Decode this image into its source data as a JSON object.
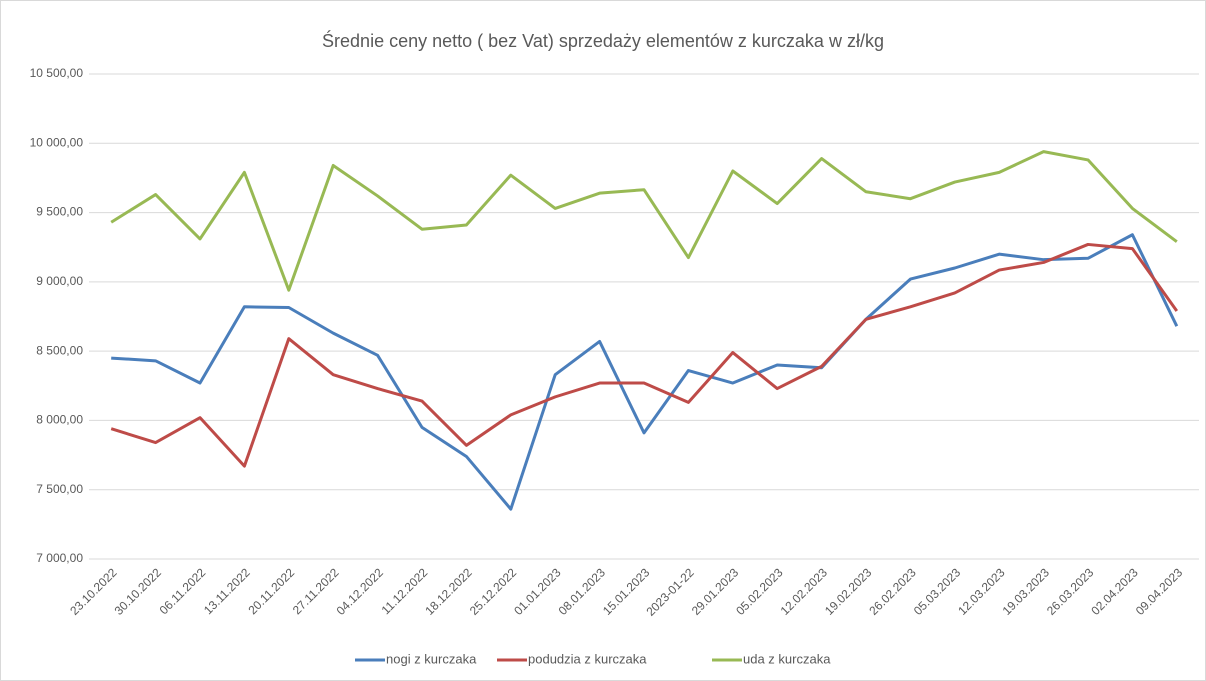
{
  "chart_data": {
    "type": "line",
    "title": "Średnie ceny netto ( bez Vat) sprzedaży elementów z kurczaka w zł/kg",
    "categories": [
      "23.10.2022",
      "30.10.2022",
      "06.11.2022",
      "13.11.2022",
      "20.11.2022",
      "27.11.2022",
      "04.12.2022",
      "11.12.2022",
      "18.12.2022",
      "25.12.2022",
      "01.01.2023",
      "08.01.2023",
      "15.01.2023",
      "2023-01-22",
      "29.01.2023",
      "05.02.2023",
      "12.02.2023",
      "19.02.2023",
      "26.02.2023",
      "05.03.2023",
      "12.03.2023",
      "19.03.2023",
      "26.03.2023",
      "02.04.2023",
      "09.04.2023"
    ],
    "series": [
      {
        "name": "nogi z kurczaka",
        "color": "#4a7ebb",
        "values": [
          8450,
          8430,
          8270,
          8820,
          8815,
          8630,
          8470,
          7950,
          7740,
          7360,
          8330,
          8570,
          7910,
          8360,
          8270,
          8400,
          8380,
          8730,
          9020,
          9100,
          9200,
          9160,
          9170,
          9340,
          8680
        ]
      },
      {
        "name": "podudzia z kurczaka",
        "color": "#be4b48",
        "values": [
          7940,
          7840,
          8020,
          7670,
          8590,
          8330,
          8230,
          8140,
          7820,
          8040,
          8170,
          8270,
          8270,
          8130,
          8490,
          8230,
          8390,
          8730,
          8820,
          8920,
          9085,
          9140,
          9270,
          9240,
          8790
        ]
      },
      {
        "name": "uda z kurczaka",
        "color": "#98b954",
        "values": [
          9430,
          9630,
          9310,
          9790,
          8940,
          9840,
          9620,
          9380,
          9410,
          9770,
          9530,
          9640,
          9665,
          9175,
          9800,
          9565,
          9890,
          9650,
          9600,
          9720,
          9790,
          9940,
          9880,
          9530,
          9290
        ]
      }
    ],
    "ylim": [
      7000,
      10500
    ],
    "yticks": [
      {
        "value": 7000,
        "label": "7 000,00"
      },
      {
        "value": 7500,
        "label": "7 500,00"
      },
      {
        "value": 8000,
        "label": "8 000,00"
      },
      {
        "value": 8500,
        "label": "8 500,00"
      },
      {
        "value": 9000,
        "label": "9 000,00"
      },
      {
        "value": 9500,
        "label": "9 500,00"
      },
      {
        "value": 10000,
        "label": "10 000,00"
      },
      {
        "value": 10500,
        "label": "10 500,00"
      }
    ],
    "grid": true,
    "legend": "bottom"
  }
}
